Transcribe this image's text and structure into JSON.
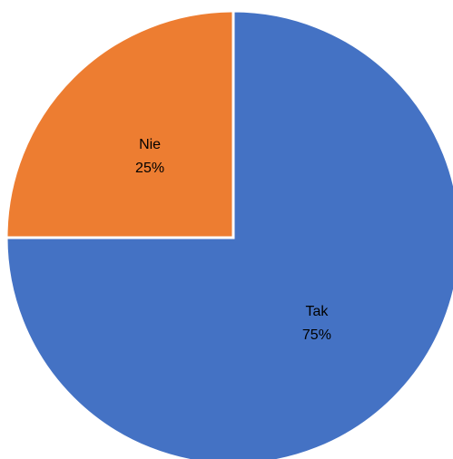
{
  "chart_data": {
    "type": "pie",
    "start_angle_deg": 0,
    "direction": "clockwise",
    "slice_border_color": "#ffffff",
    "slices": [
      {
        "name": "Tak",
        "value": 75,
        "label": "75%",
        "color": "#4472C4"
      },
      {
        "name": "Nie",
        "value": 25,
        "label": "25%",
        "color": "#ED7D31"
      }
    ]
  }
}
